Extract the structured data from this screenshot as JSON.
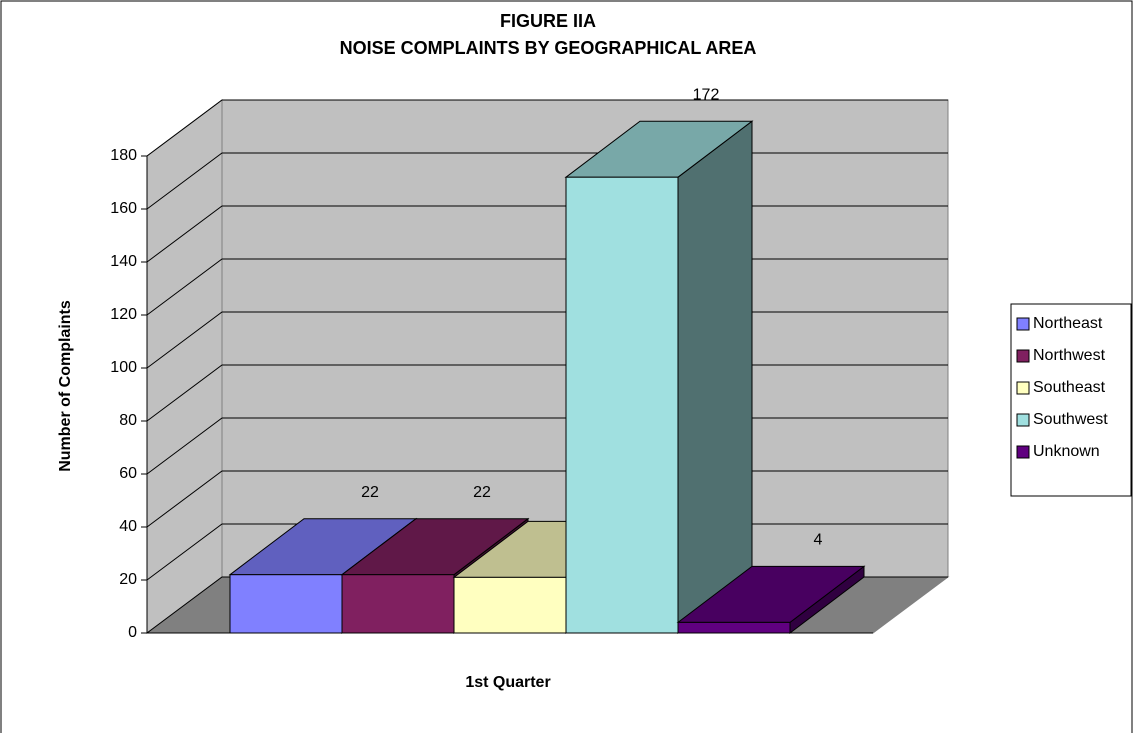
{
  "chart_data": {
    "type": "bar3d",
    "title": "FIGURE IIA",
    "subtitle": "NOISE COMPLAINTS BY GEOGRAPHICAL AREA",
    "x_label": "1st Quarter",
    "y_label": "Number of Complaints",
    "categories": [
      "1st Quarter"
    ],
    "series": [
      {
        "name": "Northeast",
        "color": "#8080ff",
        "values": [
          22
        ]
      },
      {
        "name": "Northwest",
        "color": "#802060",
        "values": [
          22
        ]
      },
      {
        "name": "Southeast",
        "color": "#ffffc0",
        "values": [
          21
        ]
      },
      {
        "name": "Southwest",
        "color": "#a0e0e0",
        "values": [
          172
        ]
      },
      {
        "name": "Unknown",
        "color": "#600080",
        "values": [
          4
        ]
      }
    ],
    "ylim": [
      0,
      180
    ],
    "yticks": [
      0,
      20,
      40,
      60,
      80,
      100,
      120,
      140,
      160,
      180
    ],
    "grid": true,
    "legend": "right"
  }
}
